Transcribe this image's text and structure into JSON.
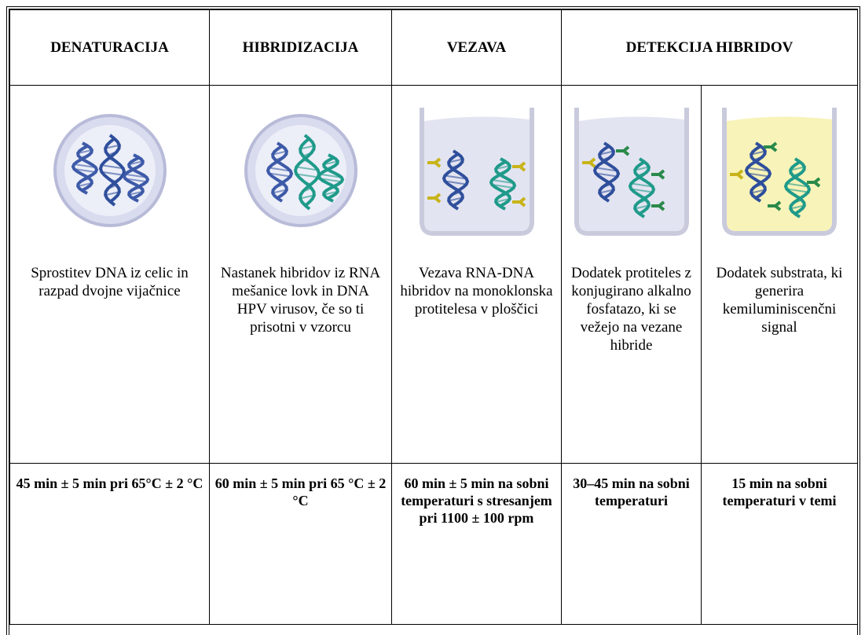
{
  "headers": [
    "DENATURACIJA",
    "HIBRIDIZACIJA",
    "VEZAVA",
    "DETEKCIJA HIBRIDOV"
  ],
  "steps": [
    {
      "description": "Sprostitev DNA iz celic in razpad dvojne vijačnice",
      "conditions": "45 min ± 5 min pri 65°C ± 2 °C"
    },
    {
      "description": "Nastanek hibridov iz RNA mešanice lovk in DNA HPV virusov, če so ti prisotni v vzorcu",
      "conditions": "60 min ± 5 min pri 65 °C ± 2 °C"
    },
    {
      "description": "Vezava RNA-DNA hibridov na monoklonska protitelesa v ploščici",
      "conditions": "60 min ± 5 min na sobni temperaturi s stresanjem pri 1100 ± 100 rpm"
    },
    {
      "description": "Dodatek protiteles z konjugirano alkalno fosfatazo, ki se vežejo na vezane hibride",
      "conditions": "30–45 min na sobni temperaturi"
    },
    {
      "description": "Dodatek substrata, ki generira kemiluminiscenčni signal",
      "conditions": "15 min na sobni temperaturi v temi"
    }
  ]
}
